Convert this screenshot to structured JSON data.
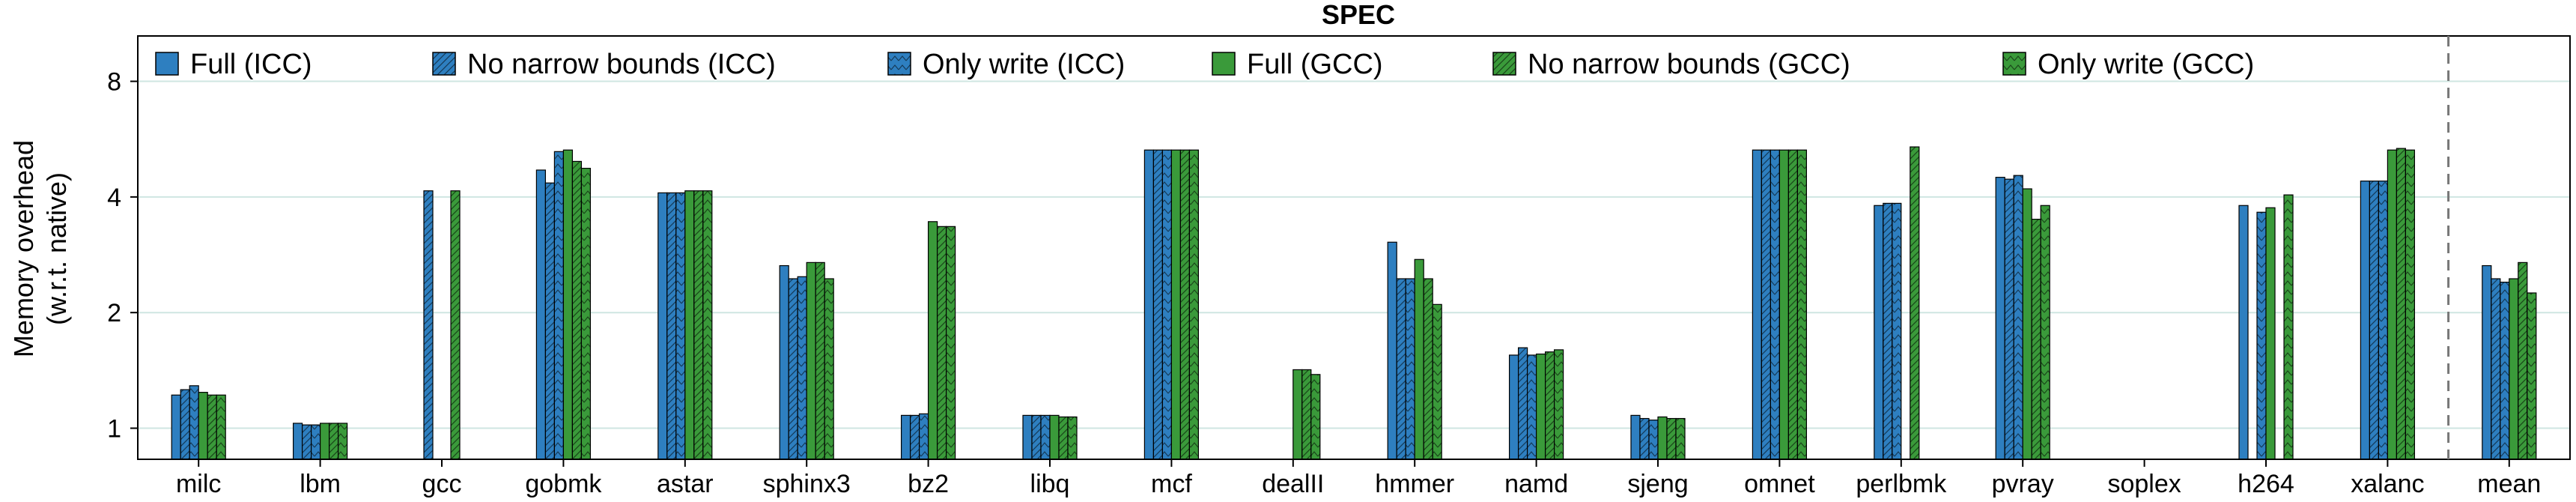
{
  "chart_data": {
    "type": "bar",
    "title": "SPEC",
    "ylabel": [
      "Memory overhead",
      "(w.r.t. native)"
    ],
    "xlabel": "",
    "yscale": "log2",
    "ylim": [
      0.83,
      10.5
    ],
    "yticks": [
      1,
      2,
      4,
      8
    ],
    "grid": "horizontal",
    "legend_position": "top",
    "categories": [
      "milc",
      "lbm",
      "gcc",
      "gobmk",
      "astar",
      "sphinx3",
      "bz2",
      "libq",
      "mcf",
      "dealII",
      "hmmer",
      "namd",
      "sjeng",
      "omnet",
      "perlbmk",
      "pvray",
      "soplex",
      "h264",
      "xalanc",
      "mean"
    ],
    "separator_before": "mean",
    "series": [
      {
        "name": "Full (ICC)",
        "color": "#2e7fc0",
        "pattern": "none",
        "values": [
          1.22,
          1.03,
          null,
          4.7,
          4.1,
          2.65,
          1.08,
          1.08,
          5.3,
          null,
          3.05,
          1.55,
          1.08,
          5.3,
          3.8,
          4.5,
          null,
          3.8,
          4.4,
          2.65
        ]
      },
      {
        "name": "No narrow bounds (ICC)",
        "color": "#2e7fc0",
        "pattern": "diagonal",
        "values": [
          1.26,
          1.02,
          4.15,
          4.35,
          4.1,
          2.45,
          1.08,
          1.08,
          5.3,
          null,
          2.45,
          1.62,
          1.06,
          5.3,
          3.85,
          4.45,
          null,
          null,
          4.4,
          2.45
        ]
      },
      {
        "name": "Only write (ICC)",
        "color": "#2e7fc0",
        "pattern": "chevron",
        "values": [
          1.29,
          1.02,
          null,
          5.25,
          4.1,
          2.48,
          1.09,
          1.08,
          5.3,
          null,
          2.45,
          1.55,
          1.05,
          5.3,
          3.85,
          4.55,
          null,
          3.65,
          4.4,
          2.4
        ]
      },
      {
        "name": "Full (GCC)",
        "color": "#3a9a3a",
        "pattern": "none",
        "values": [
          1.24,
          1.03,
          null,
          5.3,
          4.15,
          2.7,
          3.45,
          1.08,
          5.3,
          1.42,
          2.75,
          1.56,
          1.07,
          5.3,
          null,
          4.2,
          null,
          3.75,
          5.3,
          2.45
        ]
      },
      {
        "name": "No narrow bounds (GCC)",
        "color": "#3a9a3a",
        "pattern": "diagonal",
        "values": [
          1.22,
          1.03,
          4.15,
          4.95,
          4.15,
          2.7,
          3.35,
          1.07,
          5.3,
          1.42,
          2.45,
          1.58,
          1.06,
          5.3,
          5.4,
          3.5,
          null,
          null,
          5.35,
          2.7
        ]
      },
      {
        "name": "Only write (GCC)",
        "color": "#3a9a3a",
        "pattern": "chevron",
        "values": [
          1.22,
          1.03,
          null,
          4.75,
          4.15,
          2.45,
          3.35,
          1.07,
          5.3,
          1.38,
          2.1,
          1.6,
          1.06,
          5.3,
          null,
          3.8,
          null,
          4.05,
          5.3,
          2.25
        ]
      }
    ]
  }
}
